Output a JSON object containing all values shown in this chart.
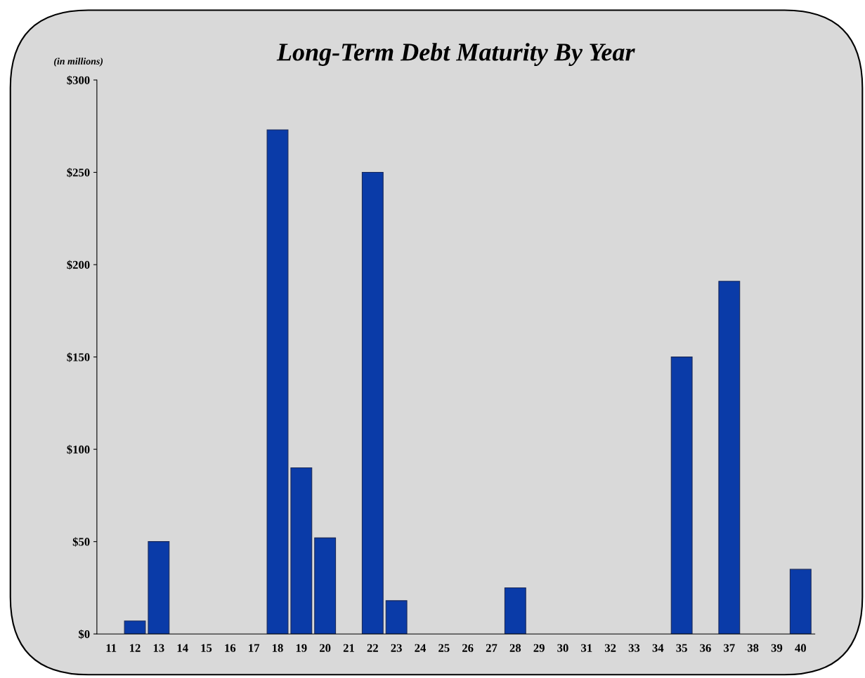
{
  "chart_data": {
    "type": "bar",
    "title": "Long-Term Debt Maturity By Year",
    "annotations": [
      "(in millions)"
    ],
    "categories": [
      "11",
      "12",
      "13",
      "14",
      "15",
      "16",
      "17",
      "18",
      "19",
      "20",
      "21",
      "22",
      "23",
      "24",
      "25",
      "26",
      "27",
      "28",
      "29",
      "30",
      "31",
      "32",
      "33",
      "34",
      "35",
      "36",
      "37",
      "38",
      "39",
      "40"
    ],
    "values": [
      null,
      7,
      50,
      null,
      null,
      null,
      null,
      273,
      90,
      52,
      null,
      250,
      18,
      null,
      null,
      null,
      null,
      25,
      null,
      null,
      null,
      null,
      null,
      null,
      150,
      null,
      191,
      null,
      null,
      35
    ],
    "color": "#0a3ba8",
    "ylim": [
      0,
      300
    ],
    "yticks": [
      {
        "value": 0,
        "label": "$0"
      },
      {
        "value": 50,
        "label": "$50"
      },
      {
        "value": 100,
        "label": "$100"
      },
      {
        "value": 150,
        "label": "$150"
      },
      {
        "value": 200,
        "label": "$200"
      },
      {
        "value": 250,
        "label": "$250"
      },
      {
        "value": 300,
        "label": "$300"
      }
    ],
    "grid": false,
    "legend": false
  }
}
